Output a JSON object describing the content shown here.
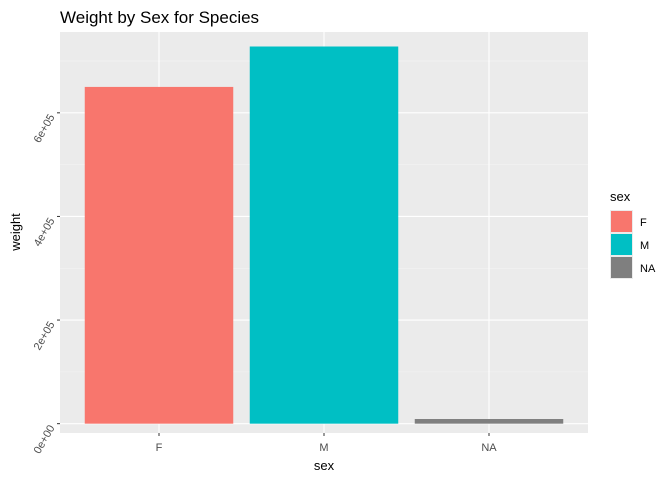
{
  "chart_data": {
    "type": "bar",
    "title": "Weight by Sex for Species",
    "xlabel": "sex",
    "ylabel": "weight",
    "categories": [
      "F",
      "M",
      "NA"
    ],
    "values": [
      650000,
      728000,
      9000
    ],
    "ylim": [
      -18000,
      756000
    ],
    "yticks": [
      0,
      200000,
      400000,
      600000
    ],
    "ytick_labels": [
      "0e+00",
      "2e+05",
      "4e+05",
      "6e+05"
    ],
    "grid": true,
    "legend": {
      "title": "sex",
      "position": "right",
      "entries": [
        "F",
        "M",
        "NA"
      ]
    },
    "colors": {
      "F": "#F8766D",
      "M": "#00BFC4",
      "NA": "#7F7F7F",
      "panel": "#EBEBEB",
      "grid_major": "#FFFFFF",
      "grid_minor": "#F5F5F5"
    }
  }
}
